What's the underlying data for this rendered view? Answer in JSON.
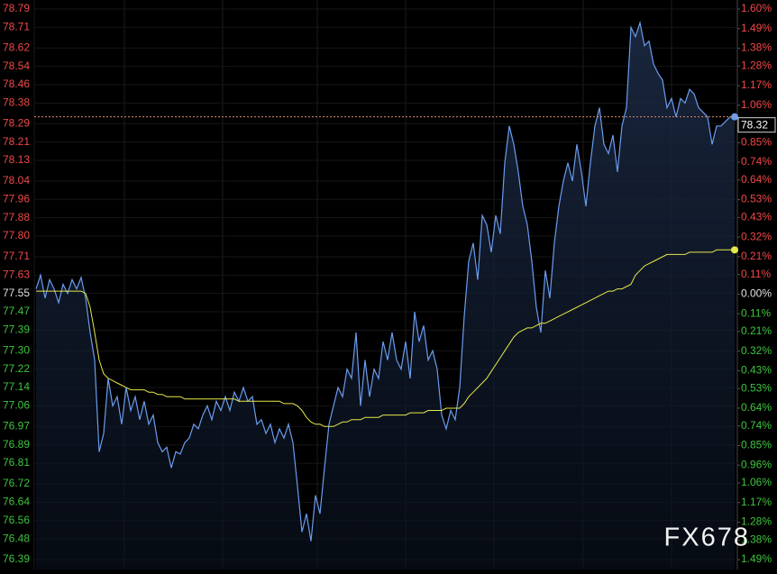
{
  "chart_data": {
    "type": "line",
    "ylim": [
      76.39,
      78.79
    ],
    "yticks": [
      78.79,
      78.71,
      78.62,
      78.54,
      78.46,
      78.38,
      78.29,
      78.21,
      78.13,
      78.04,
      77.96,
      77.88,
      {
        "value": 77.8,
        "label": "77.80"
      },
      77.71,
      77.63,
      77.55,
      77.47,
      77.39,
      {
        "value": 77.3,
        "label": "77.30"
      },
      77.22,
      77.14,
      77.06,
      76.97,
      76.89,
      76.81,
      76.72,
      76.64,
      76.56,
      76.48,
      76.39
    ],
    "y2lim": [
      -1.49,
      1.6
    ],
    "y2ticks": [
      {
        "value": 1.6,
        "label": "1.60%"
      },
      {
        "value": 1.49,
        "label": "1.49%"
      },
      {
        "value": 1.38,
        "label": "1.38%"
      },
      {
        "value": 1.28,
        "label": "1.28%"
      },
      {
        "value": 1.17,
        "label": "1.17%"
      },
      {
        "value": 1.06,
        "label": "1.06%"
      },
      {
        "value": 0.96,
        "label": "0.96%"
      },
      {
        "value": 0.85,
        "label": "0.85%"
      },
      {
        "value": 0.74,
        "label": "0.74%"
      },
      {
        "value": 0.64,
        "label": "0.64%"
      },
      {
        "value": 0.53,
        "label": "0.53%"
      },
      {
        "value": 0.43,
        "label": "0.43%"
      },
      {
        "value": 0.32,
        "label": "0.32%"
      },
      {
        "value": 0.21,
        "label": "0.21%"
      },
      {
        "value": 0.11,
        "label": "0.11%"
      },
      {
        "value": 0,
        "label": "0.00%"
      },
      {
        "value": -0.11,
        "label": "0.11%"
      },
      {
        "value": -0.21,
        "label": "0.21%"
      },
      {
        "value": -0.32,
        "label": "0.32%"
      },
      {
        "value": -0.43,
        "label": "0.43%"
      },
      {
        "value": -0.53,
        "label": "0.53%"
      },
      {
        "value": -0.64,
        "label": "0.64%"
      },
      {
        "value": -0.74,
        "label": "0.74%"
      },
      {
        "value": -0.85,
        "label": "0.85%"
      },
      {
        "value": -0.96,
        "label": "0.96%"
      },
      {
        "value": -1.06,
        "label": "1.06%"
      },
      {
        "value": -1.17,
        "label": "1.17%"
      },
      {
        "value": -1.28,
        "label": "1.28%"
      },
      {
        "value": -1.38,
        "label": "1.38%"
      },
      {
        "value": -1.49,
        "label": "1.49%"
      }
    ],
    "grid": true,
    "up_color": "#f04848",
    "down_color": "#3ec43e",
    "flat_color": "#e0e0e0",
    "last_price": 78.32,
    "watermark": "FX678",
    "series": [
      {
        "color": "#6a9cf0",
        "values": [
          77.57,
          77.63,
          77.53,
          77.61,
          77.57,
          77.51,
          77.59,
          77.55,
          77.61,
          77.57,
          77.62,
          77.53,
          77.38,
          77.26,
          76.86,
          76.94,
          77.18,
          77.06,
          77.1,
          76.98,
          77.14,
          77.04,
          77.1,
          77.0,
          77.08,
          76.98,
          77.02,
          76.9,
          76.86,
          76.88,
          76.79,
          76.86,
          76.85,
          76.9,
          76.92,
          76.98,
          76.96,
          77.02,
          77.06,
          77.0,
          77.08,
          77.04,
          77.1,
          77.04,
          77.12,
          77.08,
          77.14,
          77.08,
          77.1,
          76.98,
          77.0,
          76.94,
          76.98,
          76.9,
          76.96,
          76.92,
          76.98,
          76.9,
          76.71,
          76.51,
          76.59,
          76.47,
          76.67,
          76.59,
          76.79,
          76.98,
          77.06,
          77.14,
          77.1,
          77.22,
          77.18,
          77.38,
          77.06,
          77.26,
          77.1,
          77.22,
          77.18,
          77.34,
          77.26,
          77.38,
          77.26,
          77.22,
          77.34,
          77.18,
          77.47,
          77.34,
          77.41,
          77.26,
          77.3,
          77.22,
          77.02,
          76.96,
          77.04,
          77.0,
          77.14,
          77.45,
          77.69,
          77.77,
          77.61,
          77.89,
          77.85,
          77.73,
          77.89,
          77.81,
          78.12,
          78.28,
          78.2,
          78.08,
          77.93,
          77.85,
          77.69,
          77.49,
          77.38,
          77.65,
          77.53,
          77.77,
          77.93,
          78.04,
          78.12,
          78.04,
          78.2,
          78.08,
          77.93,
          78.12,
          78.28,
          78.36,
          78.2,
          78.16,
          78.24,
          78.08,
          78.28,
          78.36,
          78.71,
          78.67,
          78.73,
          78.63,
          78.65,
          78.55,
          78.51,
          78.48,
          78.36,
          78.4,
          78.32,
          78.4,
          78.38,
          78.44,
          78.42,
          78.36,
          78.34,
          78.32,
          78.2,
          78.28,
          78.28,
          78.3,
          78.32,
          78.32
        ]
      },
      {
        "color": "#e8e84a",
        "values": [
          77.56,
          77.56,
          77.56,
          77.56,
          77.56,
          77.56,
          77.56,
          77.56,
          77.56,
          77.56,
          77.56,
          77.55,
          77.49,
          77.38,
          77.26,
          77.2,
          77.18,
          77.17,
          77.16,
          77.15,
          77.14,
          77.13,
          77.13,
          77.13,
          77.13,
          77.12,
          77.12,
          77.11,
          77.11,
          77.1,
          77.1,
          77.1,
          77.1,
          77.09,
          77.09,
          77.09,
          77.09,
          77.09,
          77.09,
          77.09,
          77.09,
          77.09,
          77.09,
          77.09,
          77.09,
          77.08,
          77.08,
          77.08,
          77.08,
          77.08,
          77.08,
          77.08,
          77.08,
          77.08,
          77.08,
          77.07,
          77.07,
          77.07,
          77.06,
          77.04,
          77.01,
          76.99,
          76.98,
          76.98,
          76.97,
          76.97,
          76.97,
          76.98,
          76.99,
          76.99,
          77.0,
          77.0,
          77.0,
          77.01,
          77.01,
          77.01,
          77.01,
          77.02,
          77.02,
          77.02,
          77.02,
          77.02,
          77.02,
          77.03,
          77.03,
          77.03,
          77.03,
          77.04,
          77.04,
          77.04,
          77.04,
          77.05,
          77.05,
          77.05,
          77.05,
          77.07,
          77.1,
          77.12,
          77.14,
          77.16,
          77.18,
          77.21,
          77.24,
          77.27,
          77.3,
          77.33,
          77.36,
          77.38,
          77.39,
          77.4,
          77.4,
          77.41,
          77.42,
          77.42,
          77.43,
          77.44,
          77.45,
          77.46,
          77.47,
          77.48,
          77.49,
          77.5,
          77.51,
          77.52,
          77.53,
          77.54,
          77.55,
          77.56,
          77.56,
          77.57,
          77.57,
          77.58,
          77.59,
          77.63,
          77.65,
          77.67,
          77.68,
          77.69,
          77.7,
          77.71,
          77.72,
          77.72,
          77.72,
          77.72,
          77.72,
          77.73,
          77.73,
          77.73,
          77.73,
          77.73,
          77.73,
          77.74,
          77.74,
          77.74,
          77.74,
          77.74
        ]
      }
    ]
  }
}
